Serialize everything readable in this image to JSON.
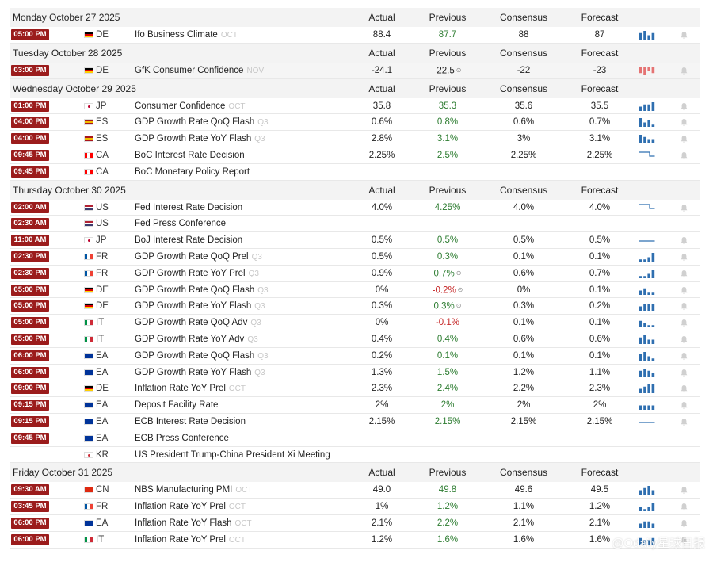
{
  "columns": {
    "actual": "Actual",
    "previous": "Previous",
    "consensus": "Consensus",
    "forecast": "Forecast"
  },
  "days": [
    {
      "date": "Monday October 27 2025",
      "events": [
        {
          "time": "05:00 PM",
          "flag": "de",
          "country": "DE",
          "event": "Ifo Business Climate",
          "ref": "OCT",
          "actual": "88.4",
          "previous": "87.7",
          "prev_color": "green",
          "consensus": "88",
          "forecast": "87",
          "spark": {
            "type": "bar",
            "values": [
              3,
              4,
              2,
              3
            ]
          }
        }
      ]
    },
    {
      "date": "Tuesday October 28 2025",
      "events": [
        {
          "time": "03:00 PM",
          "flag": "de",
          "country": "DE",
          "event": "GfK Consumer Confidence",
          "ref": "NOV",
          "actual": "-24.1",
          "previous": "-22.5",
          "prev_color": "",
          "prev_revised": true,
          "consensus": "-22",
          "forecast": "-23",
          "spark": {
            "type": "neg",
            "values": [
              3,
              4,
              2,
              3
            ]
          },
          "highlight": true
        }
      ]
    },
    {
      "date": "Wednesday October 29 2025",
      "events": [
        {
          "time": "01:00 PM",
          "flag": "jp",
          "country": "JP",
          "event": "Consumer Confidence",
          "ref": "OCT",
          "actual": "35.8",
          "previous": "35.3",
          "prev_color": "green",
          "consensus": "35.6",
          "forecast": "35.5",
          "spark": {
            "type": "bar",
            "values": [
              2,
              3,
              3,
              4
            ]
          }
        },
        {
          "time": "04:00 PM",
          "flag": "es",
          "country": "ES",
          "event": "GDP Growth Rate QoQ Flash",
          "ref": "Q3",
          "actual": "0.6%",
          "previous": "0.8%",
          "prev_color": "green",
          "consensus": "0.6%",
          "forecast": "0.7%",
          "spark": {
            "type": "bar",
            "values": [
              4,
              2,
              3,
              1
            ]
          }
        },
        {
          "time": "04:00 PM",
          "flag": "es",
          "country": "ES",
          "event": "GDP Growth Rate YoY Flash",
          "ref": "Q3",
          "actual": "2.8%",
          "previous": "3.1%",
          "prev_color": "green",
          "consensus": "3%",
          "forecast": "3.1%",
          "spark": {
            "type": "bar",
            "values": [
              4,
              3,
              2,
              2
            ]
          }
        },
        {
          "time": "09:45 PM",
          "flag": "ca",
          "country": "CA",
          "event": "BoC Interest Rate Decision",
          "ref": "",
          "actual": "2.25%",
          "previous": "2.5%",
          "prev_color": "green",
          "consensus": "2.25%",
          "forecast": "2.25%",
          "spark": {
            "type": "step",
            "values": [
              4,
              4,
              2,
              2
            ]
          }
        },
        {
          "time": "09:45 PM",
          "flag": "ca",
          "country": "CA",
          "event": "BoC Monetary Policy Report",
          "ref": "",
          "actual": "",
          "previous": "",
          "prev_color": "",
          "consensus": "",
          "forecast": "",
          "spark": null
        }
      ]
    },
    {
      "date": "Thursday October 30 2025",
      "events": [
        {
          "time": "02:00 AM",
          "flag": "us",
          "country": "US",
          "event": "Fed Interest Rate Decision",
          "ref": "",
          "actual": "4.0%",
          "previous": "4.25%",
          "prev_color": "green",
          "consensus": "4.0%",
          "forecast": "4.0%",
          "spark": {
            "type": "step",
            "values": [
              4,
              4,
              2,
              2
            ]
          }
        },
        {
          "time": "02:30 AM",
          "flag": "us",
          "country": "US",
          "event": "Fed Press Conference",
          "ref": "",
          "actual": "",
          "previous": "",
          "prev_color": "",
          "consensus": "",
          "forecast": "",
          "spark": null
        },
        {
          "time": "11:00 AM",
          "flag": "jp",
          "country": "JP",
          "event": "BoJ Interest Rate Decision",
          "ref": "",
          "actual": "0.5%",
          "previous": "0.5%",
          "prev_color": "green",
          "consensus": "0.5%",
          "forecast": "0.5%",
          "spark": {
            "type": "flat",
            "values": [
              2,
              2,
              2,
              2
            ]
          }
        },
        {
          "time": "02:30 PM",
          "flag": "fr",
          "country": "FR",
          "event": "GDP Growth Rate QoQ Prel",
          "ref": "Q3",
          "actual": "0.5%",
          "previous": "0.3%",
          "prev_color": "green",
          "consensus": "0.1%",
          "forecast": "0.1%",
          "spark": {
            "type": "bar",
            "values": [
              1,
              1,
              2,
              4
            ]
          }
        },
        {
          "time": "02:30 PM",
          "flag": "fr",
          "country": "FR",
          "event": "GDP Growth Rate YoY Prel",
          "ref": "Q3",
          "actual": "0.9%",
          "previous": "0.7%",
          "prev_color": "green",
          "prev_revised": true,
          "consensus": "0.6%",
          "forecast": "0.7%",
          "spark": {
            "type": "bar",
            "values": [
              1,
              1,
              2,
              4
            ]
          }
        },
        {
          "time": "05:00 PM",
          "flag": "de",
          "country": "DE",
          "event": "GDP Growth Rate QoQ Flash",
          "ref": "Q3",
          "actual": "0%",
          "previous": "-0.2%",
          "prev_color": "red",
          "prev_revised": true,
          "consensus": "0%",
          "forecast": "0.1%",
          "spark": {
            "type": "bar",
            "values": [
              2,
              3,
              1,
              1
            ]
          }
        },
        {
          "time": "05:00 PM",
          "flag": "de",
          "country": "DE",
          "event": "GDP Growth Rate YoY Flash",
          "ref": "Q3",
          "actual": "0.3%",
          "previous": "0.3%",
          "prev_color": "green",
          "prev_revised": true,
          "consensus": "0.3%",
          "forecast": "0.2%",
          "spark": {
            "type": "bar",
            "values": [
              2,
              3,
              3,
              3
            ]
          }
        },
        {
          "time": "05:00 PM",
          "flag": "it",
          "country": "IT",
          "event": "GDP Growth Rate QoQ Adv",
          "ref": "Q3",
          "actual": "0%",
          "previous": "-0.1%",
          "prev_color": "red",
          "consensus": "0.1%",
          "forecast": "0.1%",
          "spark": {
            "type": "bar",
            "values": [
              3,
              2,
              1,
              1
            ]
          }
        },
        {
          "time": "05:00 PM",
          "flag": "it",
          "country": "IT",
          "event": "GDP Growth Rate YoY Adv",
          "ref": "Q3",
          "actual": "0.4%",
          "previous": "0.4%",
          "prev_color": "green",
          "consensus": "0.6%",
          "forecast": "0.6%",
          "spark": {
            "type": "bar",
            "values": [
              3,
              4,
              2,
              2
            ]
          }
        },
        {
          "time": "06:00 PM",
          "flag": "eu",
          "country": "EA",
          "event": "GDP Growth Rate QoQ Flash",
          "ref": "Q3",
          "actual": "0.2%",
          "previous": "0.1%",
          "prev_color": "green",
          "consensus": "0.1%",
          "forecast": "0.1%",
          "spark": {
            "type": "bar",
            "values": [
              3,
              4,
              2,
              1
            ]
          }
        },
        {
          "time": "06:00 PM",
          "flag": "eu",
          "country": "EA",
          "event": "GDP Growth Rate YoY Flash",
          "ref": "Q3",
          "actual": "1.3%",
          "previous": "1.5%",
          "prev_color": "green",
          "consensus": "1.2%",
          "forecast": "1.1%",
          "spark": {
            "type": "bar",
            "values": [
              3,
              4,
              3,
              2
            ]
          }
        },
        {
          "time": "09:00 PM",
          "flag": "de",
          "country": "DE",
          "event": "Inflation Rate YoY Prel",
          "ref": "OCT",
          "actual": "2.3%",
          "previous": "2.4%",
          "prev_color": "green",
          "consensus": "2.2%",
          "forecast": "2.3%",
          "spark": {
            "type": "bar",
            "values": [
              2,
              3,
              4,
              4
            ]
          }
        },
        {
          "time": "09:15 PM",
          "flag": "eu",
          "country": "EA",
          "event": "Deposit Facility Rate",
          "ref": "",
          "actual": "2%",
          "previous": "2%",
          "prev_color": "green",
          "consensus": "2%",
          "forecast": "2%",
          "spark": {
            "type": "bar",
            "values": [
              2,
              2,
              2,
              2
            ]
          }
        },
        {
          "time": "09:15 PM",
          "flag": "eu",
          "country": "EA",
          "event": "ECB Interest Rate Decision",
          "ref": "",
          "actual": "2.15%",
          "previous": "2.15%",
          "prev_color": "green",
          "consensus": "2.15%",
          "forecast": "2.15%",
          "spark": {
            "type": "flat",
            "values": [
              2,
              2,
              2,
              2
            ]
          }
        },
        {
          "time": "09:45 PM",
          "flag": "eu",
          "country": "EA",
          "event": "ECB Press Conference",
          "ref": "",
          "actual": "",
          "previous": "",
          "prev_color": "",
          "consensus": "",
          "forecast": "",
          "spark": null
        },
        {
          "time": "",
          "flag": "kr",
          "country": "KR",
          "event": "US President Trump-China President Xi Meeting",
          "ref": "",
          "actual": "",
          "previous": "",
          "prev_color": "",
          "consensus": "",
          "forecast": "",
          "spark": null
        }
      ]
    },
    {
      "date": "Friday October 31 2025",
      "events": [
        {
          "time": "09:30 AM",
          "flag": "cn",
          "country": "CN",
          "event": "NBS Manufacturing PMI",
          "ref": "OCT",
          "actual": "49.0",
          "previous": "49.8",
          "prev_color": "green",
          "consensus": "49.6",
          "forecast": "49.5",
          "spark": {
            "type": "bar",
            "values": [
              2,
              3,
              4,
              2
            ]
          }
        },
        {
          "time": "03:45 PM",
          "flag": "fr",
          "country": "FR",
          "event": "Inflation Rate YoY Prel",
          "ref": "OCT",
          "actual": "1%",
          "previous": "1.2%",
          "prev_color": "green",
          "consensus": "1.1%",
          "forecast": "1.2%",
          "spark": {
            "type": "bar",
            "values": [
              2,
              1,
              2,
              4
            ]
          }
        },
        {
          "time": "06:00 PM",
          "flag": "eu",
          "country": "EA",
          "event": "Inflation Rate YoY Flash",
          "ref": "OCT",
          "actual": "2.1%",
          "previous": "2.2%",
          "prev_color": "green",
          "consensus": "2.1%",
          "forecast": "2.1%",
          "spark": {
            "type": "bar",
            "values": [
              2,
              3,
              3,
              2
            ]
          }
        },
        {
          "time": "06:00 PM",
          "flag": "it",
          "country": "IT",
          "event": "Inflation Rate YoY Prel",
          "ref": "OCT",
          "actual": "1.2%",
          "previous": "1.6%",
          "prev_color": "green",
          "consensus": "1.6%",
          "forecast": "1.6%",
          "spark": {
            "type": "bar",
            "values": [
              3,
              2,
              2,
              3
            ]
          }
        }
      ]
    }
  ],
  "flag_colors": {
    "de": [
      "#000000",
      "#dd0000",
      "#ffce00"
    ],
    "jp": [
      "#ffffff",
      "#ffffff",
      "#ffffff"
    ],
    "es": [
      "#aa151b",
      "#f1bf00",
      "#aa151b"
    ],
    "ca": [
      "#ff0000",
      "#ffffff",
      "#ff0000"
    ],
    "us": [
      "#b22234",
      "#ffffff",
      "#3c3b6e"
    ],
    "fr": [
      "#0055a4",
      "#ffffff",
      "#ef4135"
    ],
    "it": [
      "#009246",
      "#ffffff",
      "#ce2b37"
    ],
    "eu": [
      "#003399",
      "#003399",
      "#003399"
    ],
    "kr": [
      "#ffffff",
      "#ffffff",
      "#ffffff"
    ],
    "cn": [
      "#de2910",
      "#de2910",
      "#de2910"
    ]
  },
  "spark_color": "#2f6fb0",
  "spark_neg_color": "#e57373",
  "revised_mark": "⊙",
  "watermark": "@Odaily星球日报"
}
